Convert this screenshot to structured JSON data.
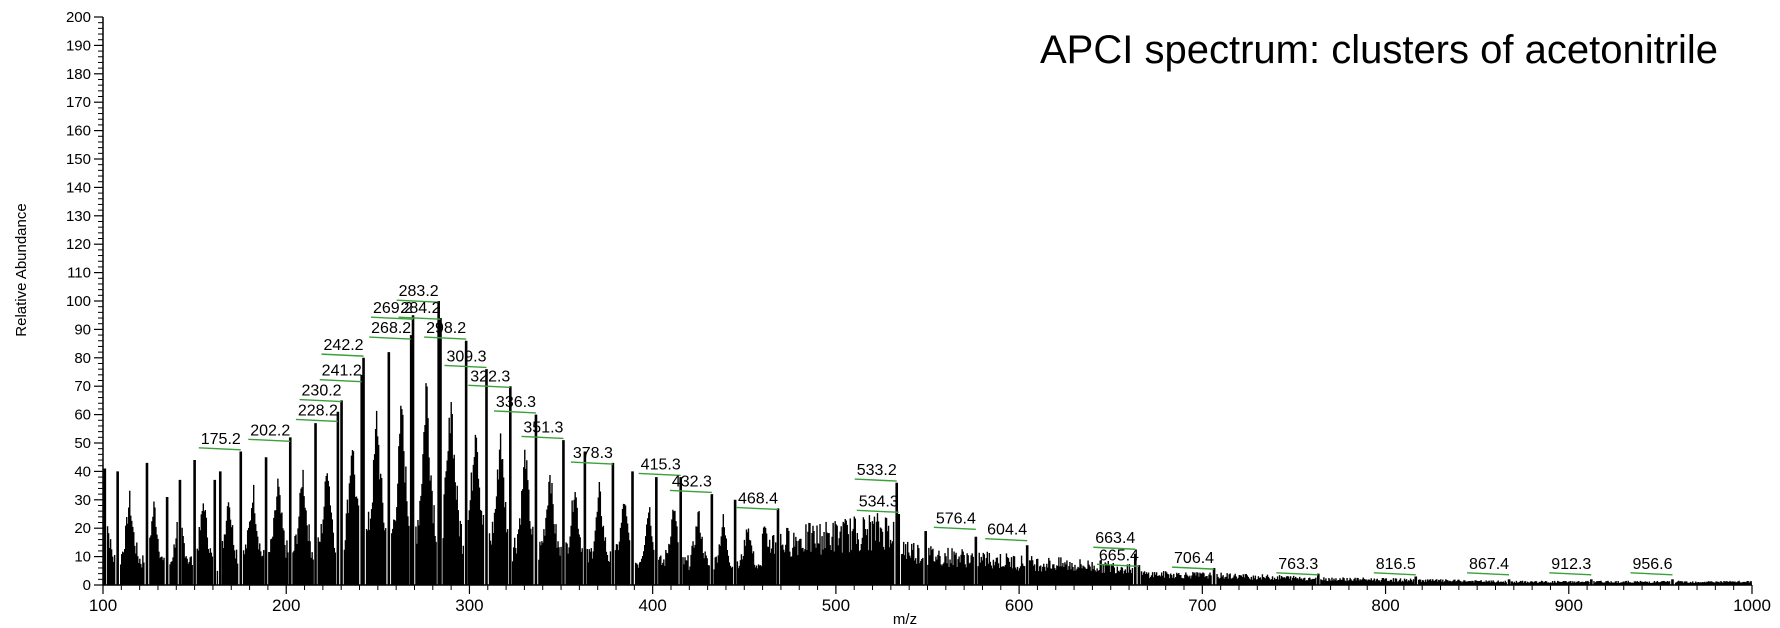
{
  "chart_data": {
    "type": "bar",
    "title": "APCI spectrum: clusters of acetonitrile",
    "xlabel": "m/z",
    "ylabel": "Relative Abundance",
    "xlim": [
      100,
      1000
    ],
    "ylim": [
      0,
      200
    ],
    "x_ticks": [
      "100",
      "200",
      "300",
      "400",
      "500",
      "600",
      "700",
      "800",
      "900",
      "1000"
    ],
    "y_ticks": [
      "0",
      "10",
      "20",
      "30",
      "40",
      "50",
      "60",
      "70",
      "80",
      "90",
      "100",
      "110",
      "120",
      "130",
      "140",
      "150",
      "160",
      "170",
      "180",
      "190",
      "200"
    ],
    "grid": false,
    "peaks": [
      {
        "mz": 101,
        "abundance": 41
      },
      {
        "mz": 108,
        "abundance": 40
      },
      {
        "mz": 124,
        "abundance": 43
      },
      {
        "mz": 135,
        "abundance": 31
      },
      {
        "mz": 142,
        "abundance": 37
      },
      {
        "mz": 150,
        "abundance": 44
      },
      {
        "mz": 161,
        "abundance": 37
      },
      {
        "mz": 164,
        "abundance": 40
      },
      {
        "mz": 175.2,
        "abundance": 47
      },
      {
        "mz": 189,
        "abundance": 45
      },
      {
        "mz": 202.2,
        "abundance": 52
      },
      {
        "mz": 216,
        "abundance": 57
      },
      {
        "mz": 228.2,
        "abundance": 61
      },
      {
        "mz": 230.2,
        "abundance": 65
      },
      {
        "mz": 241.2,
        "abundance": 74
      },
      {
        "mz": 242.2,
        "abundance": 80
      },
      {
        "mz": 256,
        "abundance": 82
      },
      {
        "mz": 268.2,
        "abundance": 88
      },
      {
        "mz": 269.2,
        "abundance": 95
      },
      {
        "mz": 283.2,
        "abundance": 100
      },
      {
        "mz": 284.2,
        "abundance": 94
      },
      {
        "mz": 298.2,
        "abundance": 86
      },
      {
        "mz": 309.3,
        "abundance": 76
      },
      {
        "mz": 322.3,
        "abundance": 70
      },
      {
        "mz": 336.3,
        "abundance": 60
      },
      {
        "mz": 351.3,
        "abundance": 51
      },
      {
        "mz": 363,
        "abundance": 47
      },
      {
        "mz": 378.3,
        "abundance": 43
      },
      {
        "mz": 389,
        "abundance": 40
      },
      {
        "mz": 402,
        "abundance": 38
      },
      {
        "mz": 415.3,
        "abundance": 38
      },
      {
        "mz": 432.3,
        "abundance": 32
      },
      {
        "mz": 445,
        "abundance": 30
      },
      {
        "mz": 468.4,
        "abundance": 27
      },
      {
        "mz": 533.2,
        "abundance": 36
      },
      {
        "mz": 534.3,
        "abundance": 25
      },
      {
        "mz": 549,
        "abundance": 19
      },
      {
        "mz": 576.4,
        "abundance": 17
      },
      {
        "mz": 604.4,
        "abundance": 14
      },
      {
        "mz": 663.4,
        "abundance": 11
      },
      {
        "mz": 665.4,
        "abundance": 7
      },
      {
        "mz": 706.4,
        "abundance": 6
      },
      {
        "mz": 763.3,
        "abundance": 4
      },
      {
        "mz": 816.5,
        "abundance": 3
      },
      {
        "mz": 867.4,
        "abundance": 2
      },
      {
        "mz": 912.3,
        "abundance": 2
      },
      {
        "mz": 956.6,
        "abundance": 2
      }
    ],
    "peak_labels": [
      {
        "text": "175.2",
        "mz": 175.2,
        "abundance": 47,
        "label_abundance": 49
      },
      {
        "text": "202.2",
        "mz": 202.2,
        "abundance": 52,
        "label_abundance": 52
      },
      {
        "text": "228.2",
        "mz": 228.2,
        "abundance": 61,
        "label_abundance": 59
      },
      {
        "text": "230.2",
        "mz": 230.2,
        "abundance": 65,
        "label_abundance": 66
      },
      {
        "text": "241.2",
        "mz": 241.2,
        "abundance": 74,
        "label_abundance": 73
      },
      {
        "text": "242.2",
        "mz": 242.2,
        "abundance": 80,
        "label_abundance": 82
      },
      {
        "text": "268.2",
        "mz": 268.2,
        "abundance": 88,
        "label_abundance": 88
      },
      {
        "text": "269.2",
        "mz": 269.2,
        "abundance": 95,
        "label_abundance": 95
      },
      {
        "text": "283.2",
        "mz": 283.2,
        "abundance": 100,
        "label_abundance": 101
      },
      {
        "text": "284.2",
        "mz": 284.2,
        "abundance": 94,
        "label_abundance": 95
      },
      {
        "text": "298.2",
        "mz": 298.2,
        "abundance": 86,
        "label_abundance": 88
      },
      {
        "text": "309.3",
        "mz": 309.3,
        "abundance": 76,
        "label_abundance": 78
      },
      {
        "text": "322.3",
        "mz": 322.3,
        "abundance": 70,
        "label_abundance": 71
      },
      {
        "text": "336.3",
        "mz": 336.3,
        "abundance": 60,
        "label_abundance": 62
      },
      {
        "text": "351.3",
        "mz": 351.3,
        "abundance": 51,
        "label_abundance": 53
      },
      {
        "text": "378.3",
        "mz": 378.3,
        "abundance": 43,
        "label_abundance": 44
      },
      {
        "text": "415.3",
        "mz": 415.3,
        "abundance": 38,
        "label_abundance": 40
      },
      {
        "text": "432.3",
        "mz": 432.3,
        "abundance": 32,
        "label_abundance": 34
      },
      {
        "text": "468.4",
        "mz": 468.4,
        "abundance": 27,
        "label_abundance": 28
      },
      {
        "text": "533.2",
        "mz": 533.2,
        "abundance": 36,
        "label_abundance": 38
      },
      {
        "text": "534.3",
        "mz": 534.3,
        "abundance": 25,
        "label_abundance": 27
      },
      {
        "text": "576.4",
        "mz": 576.4,
        "abundance": 17,
        "label_abundance": 21
      },
      {
        "text": "604.4",
        "mz": 604.4,
        "abundance": 14,
        "label_abundance": 17
      },
      {
        "text": "663.4",
        "mz": 663.4,
        "abundance": 11,
        "label_abundance": 14
      },
      {
        "text": "665.4",
        "mz": 665.4,
        "abundance": 7,
        "label_abundance": 8
      },
      {
        "text": "706.4",
        "mz": 706.4,
        "abundance": 6,
        "label_abundance": 7
      },
      {
        "text": "763.3",
        "mz": 763.3,
        "abundance": 4,
        "label_abundance": 5
      },
      {
        "text": "816.5",
        "mz": 816.5,
        "abundance": 3,
        "label_abundance": 5
      },
      {
        "text": "867.4",
        "mz": 867.4,
        "abundance": 2,
        "label_abundance": 5
      },
      {
        "text": "912.3",
        "mz": 912.3,
        "abundance": 2,
        "label_abundance": 5
      },
      {
        "text": "956.6",
        "mz": 956.6,
        "abundance": 2,
        "label_abundance": 5
      }
    ],
    "colors": {
      "bars": "#000000",
      "label_leader": "#3aa03a",
      "text": "#000000"
    }
  }
}
